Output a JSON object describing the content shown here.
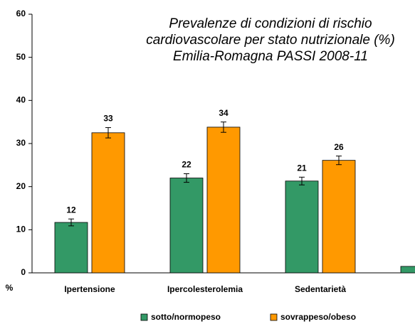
{
  "chart_data": {
    "type": "bar",
    "title": [
      "Prevalenze di condizioni di rischio",
      "cardiovascolare per stato nutrizionale (%)",
      "Emilia-Romagna PASSI 2008-11"
    ],
    "y_label": "%",
    "categories": [
      "Ipertensione",
      "Ipercolesterolemia",
      "Sedentarietà",
      null
    ],
    "series": [
      {
        "name": "sotto/normopeso",
        "color": "#339966",
        "values": [
          11.7,
          22.0,
          21.3,
          1.5
        ],
        "value_labels": [
          "12",
          "22",
          "21",
          null
        ],
        "errors": [
          0.8,
          1.0,
          0.9,
          null
        ]
      },
      {
        "name": "sovrappeso/obeso",
        "color": "#ff9900",
        "values": [
          32.5,
          33.8,
          26.1,
          null
        ],
        "value_labels": [
          "33",
          "34",
          "26",
          null
        ],
        "errors": [
          1.2,
          1.2,
          1.0,
          null
        ]
      }
    ],
    "ylim": [
      0,
      60
    ],
    "yticks": [
      0,
      10,
      20,
      30,
      40,
      50,
      60
    ],
    "grid": false,
    "legend": "bottom"
  }
}
